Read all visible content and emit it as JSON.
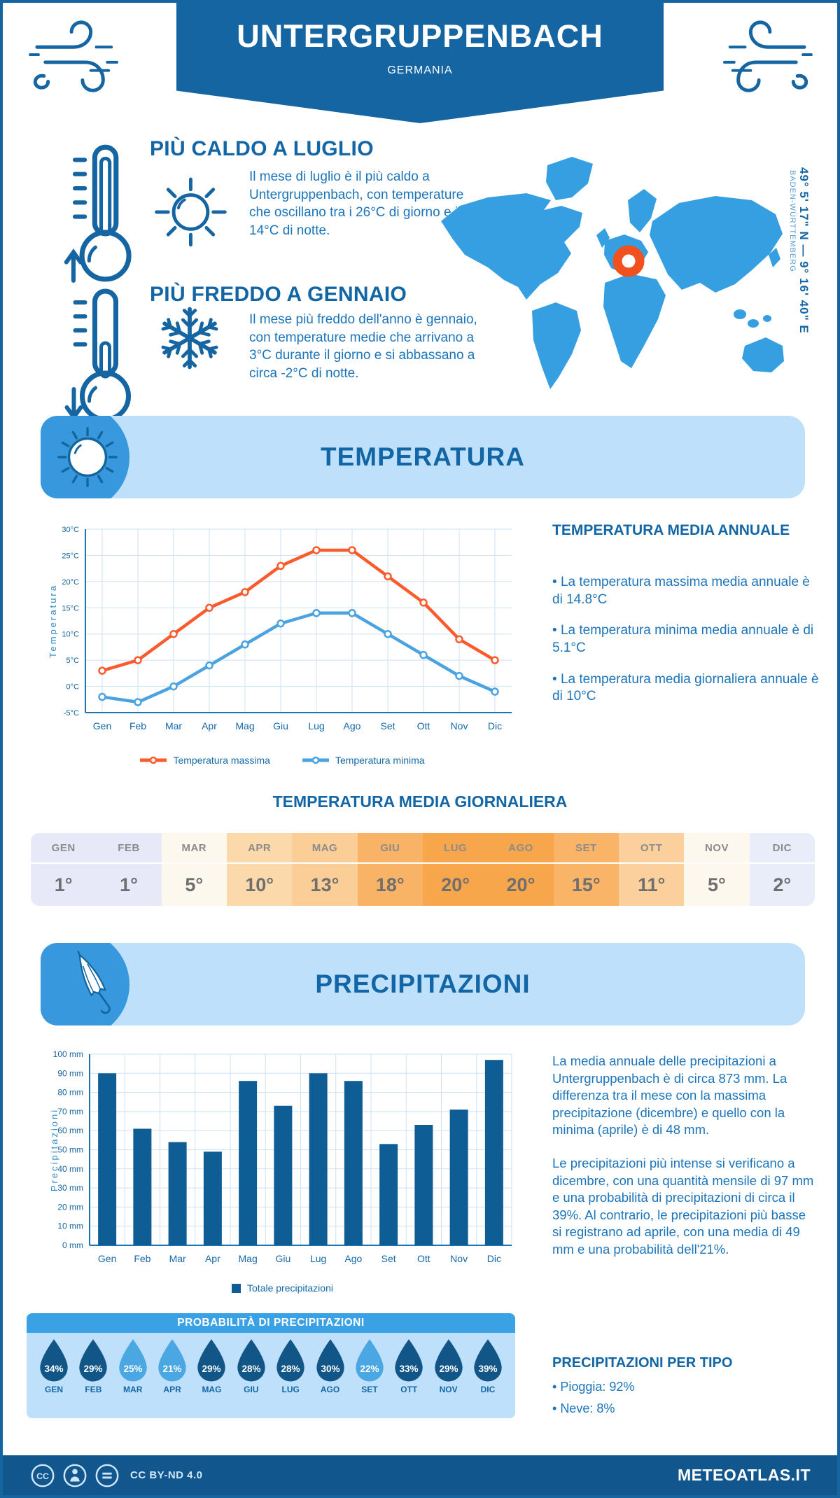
{
  "colors": {
    "primary": "#1465a1",
    "accent": "#3798dd",
    "panel_light": "#bfe0fb",
    "heading": "#1366a5",
    "body_text": "#1b74ba",
    "orange": "#fb5a2d",
    "line_blue": "#4aa3e0",
    "bar_blue": "#0e5d95",
    "marker_orange": "#f0511f",
    "grid": "#cbe2f5",
    "axis": "#1b74b4",
    "drop_dark": "#115687",
    "drop_light": "#4aa7e2"
  },
  "header": {
    "title": "UNTERGRUPPENBACH",
    "subtitle": "GERMANIA"
  },
  "location": {
    "coordinates": "49° 5' 17\" N — 9° 16' 40\" E",
    "region": "BADEN-WÜRTTEMBERG"
  },
  "highlights": {
    "warmest": {
      "title": "PIÙ CALDO A LUGLIO",
      "text": "Il mese di luglio è il più caldo a Untergruppenbach, con temperature che oscillano tra i 26°C di giorno e i 14°C di notte."
    },
    "coldest": {
      "title": "PIÙ FREDDO A GENNAIO",
      "text": "Il mese più freddo dell'anno è gennaio, con temperature medie che arrivano a 3°C durante il giorno e si abbassano a circa -2°C di notte."
    }
  },
  "temperature": {
    "section_title": "TEMPERATURA",
    "annual_title": "TEMPERATURA MEDIA ANNUALE",
    "annual_bullets": [
      "La temperatura massima media annuale è di 14.8°C",
      "La temperatura minima media annuale è di 5.1°C",
      "La temperatura media giornaliera annuale è di 10°C"
    ],
    "daily_title": "TEMPERATURA MEDIA GIORNALIERA",
    "monthly_table": {
      "months": [
        "GEN",
        "FEB",
        "MAR",
        "APR",
        "MAG",
        "GIU",
        "LUG",
        "AGO",
        "SET",
        "OTT",
        "NOV",
        "DIC"
      ],
      "values": [
        "1°",
        "1°",
        "5°",
        "10°",
        "13°",
        "18°",
        "20°",
        "20°",
        "15°",
        "11°",
        "5°",
        "2°"
      ],
      "cell_colors": [
        "#e7e9f8",
        "#e7e9f8",
        "#fdf8ee",
        "#fcd9ab",
        "#fbce98",
        "#f9b366",
        "#f7a64c",
        "#f7a64c",
        "#f9b468",
        "#fbd09c",
        "#fdf8ee",
        "#e9ecf9"
      ]
    }
  },
  "precipitation": {
    "section_title": "PRECIPITAZIONI",
    "paragraphs": [
      "La media annuale delle precipitazioni a Untergruppenbach è di circa 873 mm. La differenza tra il mese con la massima precipitazione (dicembre) e quello con la minima (aprile) è di 48 mm.",
      "Le precipitazioni più intense si verificano a dicembre, con una quantità mensile di 97 mm e una probabilità di precipitazioni di circa il 39%. Al contrario, le precipitazioni più basse si registrano ad aprile, con una media di 49 mm e una probabilità dell'21%."
    ],
    "probability": {
      "title": "PROBABILITÀ DI PRECIPITAZIONI",
      "months": [
        "GEN",
        "FEB",
        "MAR",
        "APR",
        "MAG",
        "GIU",
        "LUG",
        "AGO",
        "SET",
        "OTT",
        "NOV",
        "DIC"
      ],
      "values": [
        "34%",
        "29%",
        "25%",
        "21%",
        "29%",
        "28%",
        "28%",
        "30%",
        "22%",
        "33%",
        "29%",
        "39%"
      ],
      "light_drops": [
        2,
        3,
        8
      ]
    },
    "by_type": {
      "title": "PRECIPITAZIONI PER TIPO",
      "bullets": [
        "Pioggia: 92%",
        "Neve: 8%"
      ]
    }
  },
  "chart_data": [
    {
      "type": "line",
      "title": "Temperatura",
      "x": [
        "Gen",
        "Feb",
        "Mar",
        "Apr",
        "Mag",
        "Giu",
        "Lug",
        "Ago",
        "Set",
        "Ott",
        "Nov",
        "Dic"
      ],
      "series": [
        {
          "name": "Temperatura massima",
          "color": "#fb5a2d",
          "values": [
            3,
            5,
            10,
            15,
            18,
            23,
            26,
            26,
            21,
            16,
            9,
            5
          ]
        },
        {
          "name": "Temperatura minima",
          "color": "#4aa3e0",
          "values": [
            -2,
            -3,
            0,
            4,
            8,
            12,
            14,
            14,
            10,
            6,
            2,
            -1
          ]
        }
      ],
      "ylabel": "Temperatura",
      "ylim": [
        -5,
        30
      ],
      "ystep": 5,
      "yunit": "°C",
      "grid": true,
      "legend_position": "bottom"
    },
    {
      "type": "bar",
      "title": "Precipitazioni",
      "categories": [
        "Gen",
        "Feb",
        "Mar",
        "Apr",
        "Mag",
        "Giu",
        "Lug",
        "Ago",
        "Set",
        "Ott",
        "Nov",
        "Dic"
      ],
      "values": [
        90,
        61,
        54,
        49,
        86,
        73,
        90,
        86,
        53,
        63,
        71,
        97
      ],
      "series_name": "Totale precipitazioni",
      "color": "#0e5d95",
      "ylabel": "Precipitazioni",
      "ylim": [
        0,
        100
      ],
      "ystep": 10,
      "yunit": " mm",
      "grid": true,
      "legend_position": "bottom"
    }
  ],
  "footer": {
    "license": "CC BY-ND 4.0",
    "brand": "METEOATLAS.IT"
  }
}
